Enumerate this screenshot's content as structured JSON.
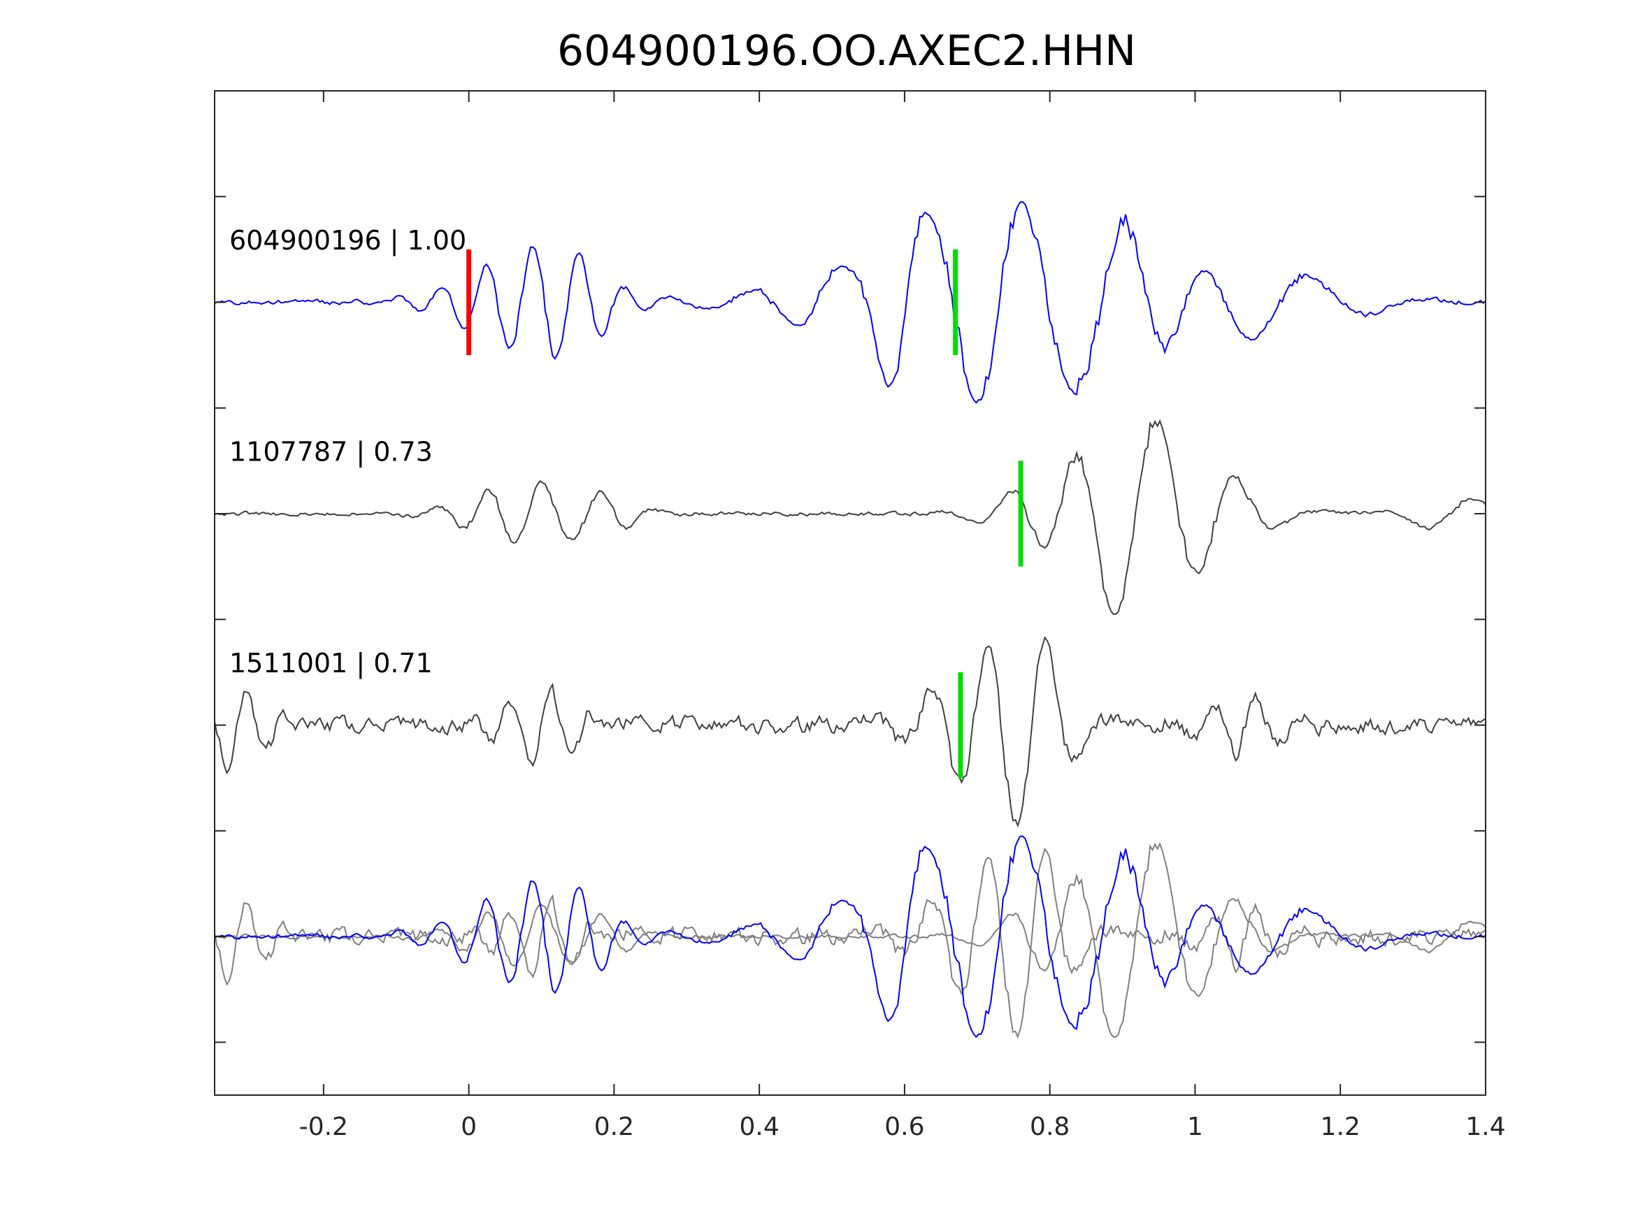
{
  "chart_data": {
    "type": "line",
    "title": "604900196.OO.AXEC2.HHN",
    "xlabel": "",
    "ylabel": "",
    "xlim": [
      -0.35,
      1.4
    ],
    "x_ticks": [
      -0.2,
      0,
      0.2,
      0.4,
      0.6,
      0.8,
      1,
      1.2,
      1.4
    ],
    "x_tick_labels": [
      "-0.2",
      "0",
      "0.2",
      "0.4",
      "0.6",
      "0.8",
      "1",
      "1.2",
      "1.4"
    ],
    "y_tick_labels": [],
    "grid": false,
    "legend": "none",
    "colors": {
      "reference_trace": "#0000ff",
      "match_trace": "#404040",
      "overlay_match": "#808080",
      "p_pick": "#ff0000",
      "s_pick": "#00dd00",
      "axes": "#262626"
    },
    "traces": [
      {
        "label": "604900196 | 1.00",
        "color": "#0000ff",
        "amplitude": 1.0,
        "seed": 11,
        "s_pick": 0.67,
        "p_pick": 0.0,
        "events": [
          {
            "t": 0.07,
            "amp": 0.4,
            "freq": 16,
            "dur": 0.08
          },
          {
            "t": 0.14,
            "amp": 0.28,
            "freq": 16,
            "dur": 0.05
          },
          {
            "t": 0.6,
            "amp": 0.22,
            "freq": 14,
            "dur": 0.05
          },
          {
            "t": 0.73,
            "amp": 1.0,
            "freq": 8,
            "dur": 0.16
          },
          {
            "t": 0.89,
            "amp": 0.65,
            "freq": 8,
            "dur": 0.06
          },
          {
            "t": 1.12,
            "amp": 0.28,
            "freq": 6,
            "dur": 0.09
          }
        ]
      },
      {
        "label": "1107787 | 0.73",
        "color": "#404040",
        "amplitude": 1.0,
        "seed": 23,
        "s_pick": 0.76,
        "events": [
          {
            "t": 0.08,
            "amp": 0.38,
            "freq": 14,
            "dur": 0.07
          },
          {
            "t": 0.17,
            "amp": 0.25,
            "freq": 14,
            "dur": 0.05
          },
          {
            "t": 0.82,
            "amp": 0.55,
            "freq": 10,
            "dur": 0.07
          },
          {
            "t": 0.92,
            "amp": 1.0,
            "freq": 7,
            "dur": 0.07
          },
          {
            "t": 1.02,
            "amp": 0.6,
            "freq": 8,
            "dur": 0.06
          },
          {
            "t": 1.35,
            "amp": 0.22,
            "freq": 7,
            "dur": 0.05
          }
        ]
      },
      {
        "label": "1511001 | 0.71",
        "color": "#404040",
        "amplitude": 1.0,
        "seed": 37,
        "s_pick": 0.677,
        "noise": 0.5,
        "events": [
          {
            "t": -0.32,
            "amp": 0.5,
            "freq": 18,
            "dur": 0.04
          },
          {
            "t": 0.1,
            "amp": 0.4,
            "freq": 18,
            "dur": 0.05
          },
          {
            "t": 0.7,
            "amp": 0.7,
            "freq": 12,
            "dur": 0.07
          },
          {
            "t": 0.77,
            "amp": 0.8,
            "freq": 11,
            "dur": 0.05
          },
          {
            "t": 1.07,
            "amp": 0.35,
            "freq": 16,
            "dur": 0.05
          }
        ]
      }
    ]
  }
}
